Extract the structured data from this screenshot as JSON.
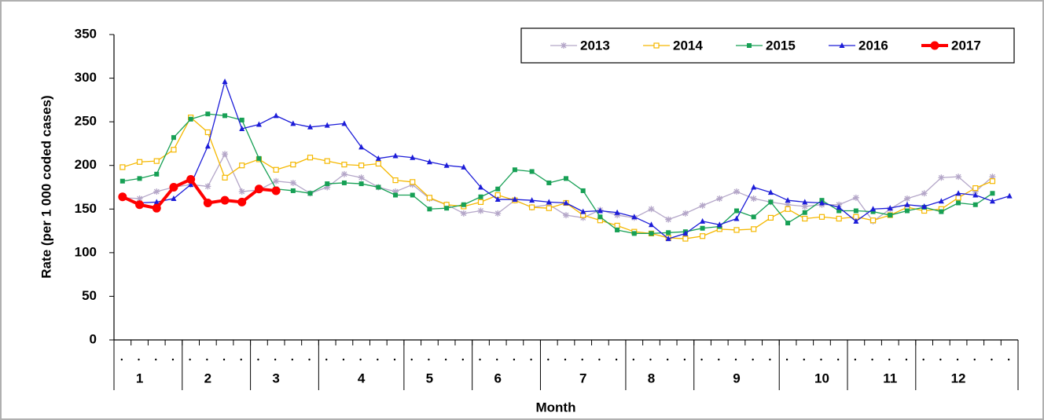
{
  "chart_data": {
    "type": "line",
    "y_label": "Rate (per 1 000 coded cases)",
    "x_label": "Month",
    "categories": [
      null,
      "1",
      null,
      null,
      null,
      "2",
      null,
      null,
      null,
      "3",
      null,
      null,
      null,
      null,
      "4",
      null,
      null,
      null,
      "5",
      null,
      null,
      null,
      "6",
      null,
      null,
      null,
      null,
      "7",
      null,
      null,
      null,
      "8",
      null,
      null,
      null,
      null,
      "9",
      null,
      null,
      null,
      null,
      "10",
      null,
      null,
      null,
      "11",
      null,
      null,
      null,
      "12",
      null,
      null,
      null
    ],
    "ylim": [
      0,
      350
    ],
    "yticks": [
      0,
      50,
      100,
      150,
      200,
      250,
      300,
      350
    ],
    "grid": false,
    "legend": "top-right",
    "series": [
      {
        "name": "2013",
        "color": "#b4a6c8",
        "marker": "star",
        "values": [
          163,
          162,
          170,
          175,
          178,
          176,
          213,
          170,
          172,
          182,
          180,
          168,
          175,
          190,
          186,
          175,
          170,
          178,
          162,
          155,
          145,
          148,
          145,
          160,
          152,
          155,
          143,
          140,
          149,
          143,
          140,
          150,
          138,
          145,
          154,
          162,
          170,
          162,
          158,
          155,
          153,
          155,
          155,
          163,
          136,
          150,
          162,
          168,
          186,
          187,
          170,
          187,
          null
        ]
      },
      {
        "name": "2014",
        "color": "#f5b800",
        "marker": "open-square",
        "values": [
          198,
          204,
          205,
          218,
          255,
          238,
          186,
          200,
          207,
          195,
          201,
          209,
          205,
          201,
          200,
          202,
          183,
          181,
          163,
          155,
          153,
          158,
          166,
          160,
          152,
          151,
          157,
          143,
          137,
          131,
          124,
          122,
          117,
          116,
          119,
          127,
          126,
          127,
          140,
          150,
          139,
          141,
          139,
          141,
          137,
          143,
          152,
          148,
          150,
          163,
          174,
          182,
          null
        ]
      },
      {
        "name": "2015",
        "color": "#17a055",
        "marker": "square",
        "values": [
          182,
          185,
          190,
          232,
          253,
          259,
          257,
          252,
          208,
          173,
          171,
          168,
          179,
          180,
          179,
          175,
          166,
          166,
          150,
          151,
          155,
          164,
          173,
          195,
          193,
          180,
          185,
          171,
          141,
          126,
          122,
          122,
          123,
          124,
          128,
          130,
          148,
          141,
          158,
          134,
          146,
          160,
          148,
          148,
          147,
          143,
          148,
          152,
          147,
          157,
          155,
          168,
          null
        ]
      },
      {
        "name": "2016",
        "color": "#1c1cd8",
        "marker": "triangle",
        "values": [
          163,
          157,
          158,
          162,
          178,
          222,
          296,
          242,
          247,
          257,
          248,
          244,
          246,
          248,
          221,
          208,
          211,
          209,
          204,
          200,
          198,
          175,
          161,
          161,
          160,
          158,
          157,
          147,
          148,
          146,
          141,
          132,
          116,
          122,
          136,
          132,
          139,
          175,
          169,
          160,
          158,
          157,
          152,
          136,
          150,
          151,
          155,
          153,
          159,
          168,
          166,
          159,
          165
        ]
      },
      {
        "name": "2017",
        "color": "#ff0000",
        "marker": "circle",
        "values": [
          164,
          155,
          151,
          175,
          184,
          157,
          160,
          158,
          173,
          171,
          null,
          null,
          null,
          null,
          null,
          null,
          null,
          null,
          null,
          null,
          null,
          null,
          null,
          null,
          null,
          null,
          null,
          null,
          null,
          null,
          null,
          null,
          null,
          null,
          null,
          null,
          null,
          null,
          null,
          null,
          null,
          null,
          null,
          null,
          null,
          null,
          null,
          null,
          null,
          null,
          null,
          null,
          null
        ]
      }
    ]
  }
}
